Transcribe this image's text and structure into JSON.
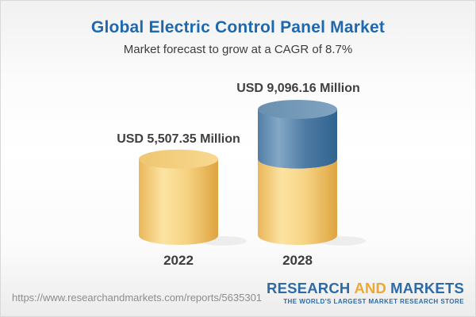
{
  "header": {
    "title": "Global Electric Control Panel Market",
    "subtitle": "Market forecast to grow at a CAGR of 8.7%"
  },
  "chart_data": {
    "type": "bar",
    "variant": "3d-cylinder",
    "categories": [
      "2022",
      "2028"
    ],
    "values": [
      5507.35,
      9096.16
    ],
    "value_labels": [
      "USD 5,507.35 Million",
      "USD 9,096.16 Million"
    ],
    "unit": "USD Million",
    "cagr": "8.7%",
    "title": "Global Electric Control Panel Market",
    "xlabel": "",
    "ylabel": "",
    "ylim": [
      0,
      9096.16
    ],
    "grid": false,
    "legend": "none",
    "colors": {
      "base_cylinder": "#f2c873",
      "growth_segment": "#4f7da5",
      "title_text": "#1e68ae",
      "label_text": "#3f3f3f",
      "logo_blue": "#2c6ba6",
      "logo_orange": "#efa82f"
    }
  },
  "footer": {
    "url": "https://www.researchandmarkets.com/reports/5635301",
    "logo": {
      "word1": "RESEARCH",
      "word2": "AND",
      "word3": "MARKETS",
      "tagline": "THE WORLD'S LARGEST MARKET RESEARCH STORE"
    }
  }
}
